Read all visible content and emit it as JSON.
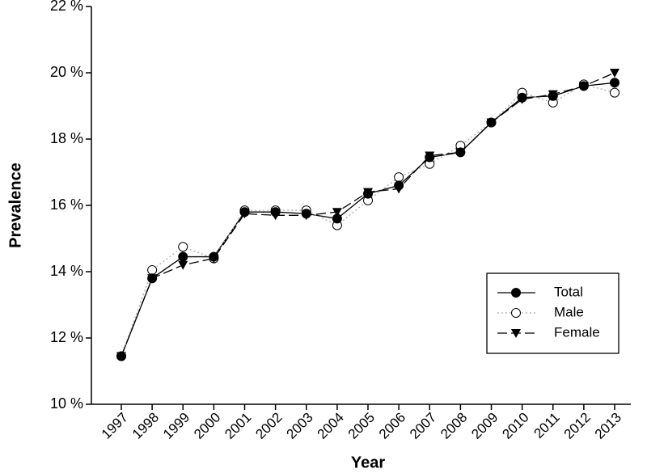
{
  "chart_data": {
    "type": "line",
    "x_label": "Year",
    "y_label": "Prevalence",
    "categories": [
      "1997",
      "1998",
      "1999",
      "2000",
      "2001",
      "2002",
      "2003",
      "2004",
      "2005",
      "2006",
      "2007",
      "2008",
      "2009",
      "2010",
      "2011",
      "2012",
      "2013"
    ],
    "series": [
      {
        "name": "Total",
        "color": "#000000",
        "line_style": "solid",
        "marker": "filled-circle",
        "values": [
          11.45,
          13.8,
          14.45,
          14.45,
          15.8,
          15.8,
          15.75,
          15.6,
          16.35,
          16.6,
          17.45,
          17.6,
          18.5,
          19.25,
          19.3,
          19.6,
          19.7
        ]
      },
      {
        "name": "Male",
        "color": "#aaaaaa",
        "line_style": "dotted",
        "marker": "open-circle",
        "values": [
          11.45,
          14.05,
          14.75,
          14.4,
          15.85,
          15.85,
          15.85,
          15.4,
          16.15,
          16.85,
          17.25,
          17.8,
          18.5,
          19.4,
          19.1,
          19.65,
          19.4
        ]
      },
      {
        "name": "Female",
        "color": "#000000",
        "line_style": "dashed",
        "marker": "down-triangle",
        "values": [
          11.45,
          13.8,
          14.2,
          14.4,
          15.75,
          15.7,
          15.7,
          15.8,
          16.4,
          16.5,
          17.5,
          17.6,
          18.5,
          19.2,
          19.35,
          19.6,
          20.0
        ]
      }
    ],
    "ylim": [
      10,
      22
    ],
    "yticks": [
      {
        "value": 10,
        "label": "10 %"
      },
      {
        "value": 12,
        "label": "12 %"
      },
      {
        "value": 14,
        "label": "14 %"
      },
      {
        "value": 16,
        "label": "16 %"
      },
      {
        "value": 18,
        "label": "18 %"
      },
      {
        "value": 20,
        "label": "20 %"
      },
      {
        "value": 22,
        "label": "22 %"
      }
    ],
    "grid": false,
    "legend": "lower right"
  }
}
